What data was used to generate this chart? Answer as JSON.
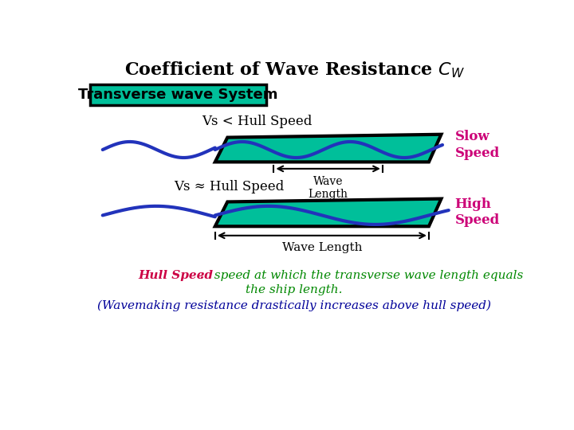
{
  "bg_color": "#ffffff",
  "teal_color": "#00BF9A",
  "hull_border_color": "#000000",
  "wave_color": "#2233BB",
  "label_box_bg": "#00BF9A",
  "label_box_border": "#000000",
  "label_box_text": "Transverse wave System",
  "slow_label": "Slow\nSpeed",
  "high_label": "High\nSpeed",
  "magenta_color": "#CC0077",
  "vs_lt_text": "Vs < Hull Speed",
  "vs_approx_text": "Vs ≈ Hull Speed",
  "wave_length_text": "Wave\nLength",
  "wave_length2_text": "Wave Length",
  "hull_speed_color": "#CC0044",
  "green_text_color": "#008800",
  "bottom_italic_color": "#000099",
  "title_main": "Coefficient of Wave Resistance ",
  "title_sub": "W"
}
